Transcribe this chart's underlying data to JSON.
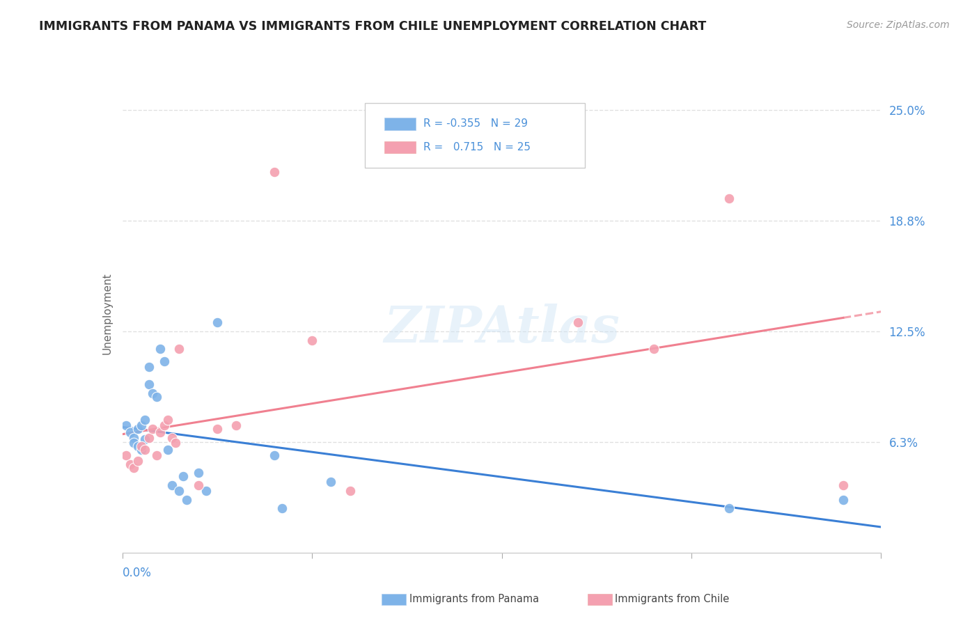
{
  "title": "IMMIGRANTS FROM PANAMA VS IMMIGRANTS FROM CHILE UNEMPLOYMENT CORRELATION CHART",
  "source": "Source: ZipAtlas.com",
  "ylabel": "Unemployment",
  "ytick_vals": [
    0.0625,
    0.125,
    0.1875,
    0.25
  ],
  "ytick_labels": [
    "6.3%",
    "12.5%",
    "18.8%",
    "25.0%"
  ],
  "xlim": [
    0.0,
    0.2
  ],
  "ylim": [
    0.0,
    0.27
  ],
  "panama_R": -0.355,
  "panama_N": 29,
  "chile_R": 0.715,
  "chile_N": 25,
  "panama_color": "#7eb3e8",
  "chile_color": "#f4a0b0",
  "panama_line_color": "#3a7fd5",
  "chile_line_color": "#f08090",
  "panama_x": [
    0.001,
    0.002,
    0.003,
    0.003,
    0.004,
    0.004,
    0.005,
    0.005,
    0.006,
    0.006,
    0.007,
    0.007,
    0.008,
    0.009,
    0.01,
    0.011,
    0.012,
    0.013,
    0.015,
    0.016,
    0.017,
    0.02,
    0.022,
    0.025,
    0.04,
    0.042,
    0.055,
    0.16,
    0.19
  ],
  "panama_y": [
    0.072,
    0.068,
    0.065,
    0.062,
    0.07,
    0.06,
    0.072,
    0.058,
    0.075,
    0.064,
    0.105,
    0.095,
    0.09,
    0.088,
    0.115,
    0.108,
    0.058,
    0.038,
    0.035,
    0.043,
    0.03,
    0.045,
    0.035,
    0.13,
    0.055,
    0.025,
    0.04,
    0.025,
    0.03
  ],
  "chile_x": [
    0.001,
    0.002,
    0.003,
    0.004,
    0.005,
    0.006,
    0.007,
    0.008,
    0.009,
    0.01,
    0.011,
    0.012,
    0.013,
    0.014,
    0.015,
    0.02,
    0.025,
    0.03,
    0.04,
    0.05,
    0.06,
    0.12,
    0.14,
    0.16,
    0.19
  ],
  "chile_y": [
    0.055,
    0.05,
    0.048,
    0.052,
    0.06,
    0.058,
    0.065,
    0.07,
    0.055,
    0.068,
    0.072,
    0.075,
    0.065,
    0.062,
    0.115,
    0.038,
    0.07,
    0.072,
    0.215,
    0.12,
    0.035,
    0.13,
    0.115,
    0.2,
    0.038
  ],
  "watermark": "ZIPAtlas",
  "background_color": "#ffffff",
  "grid_color": "#dddddd",
  "axis_label_color": "#4a90d9",
  "ylabel_color": "#666666"
}
